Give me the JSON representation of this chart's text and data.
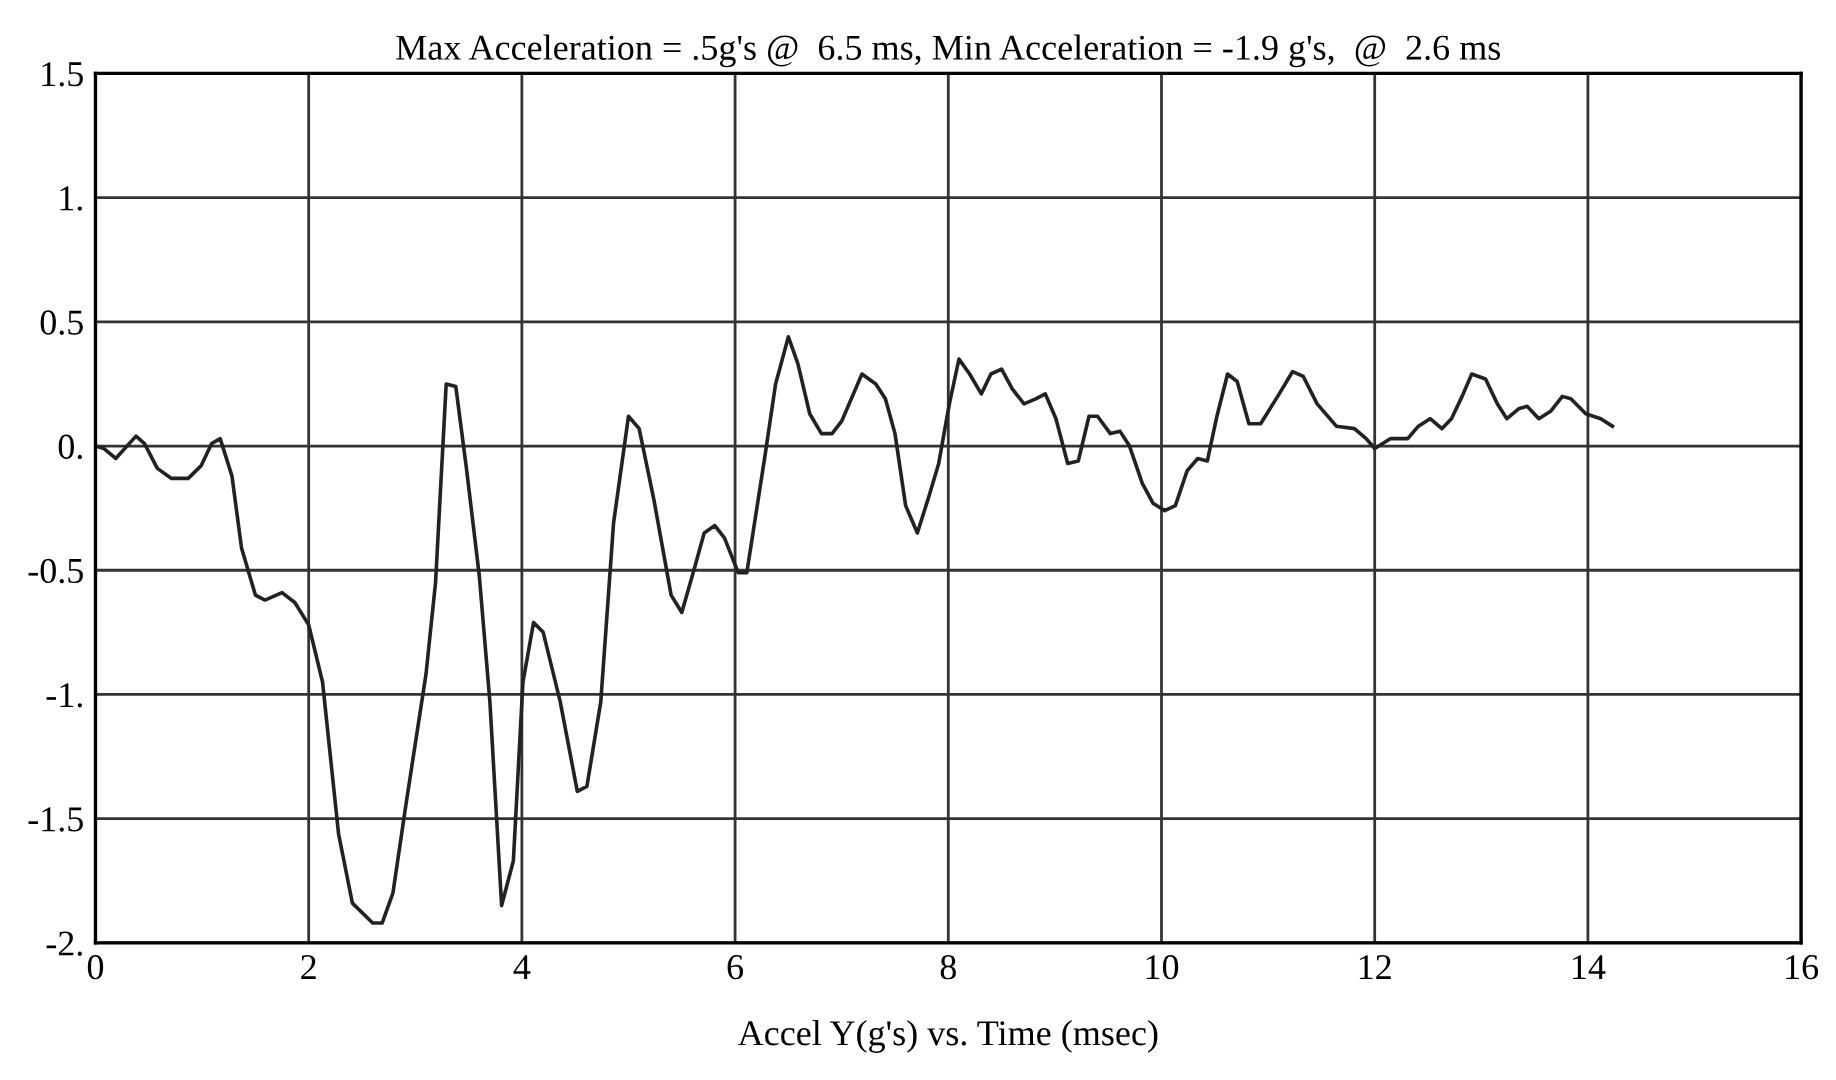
{
  "chart_data": {
    "type": "line",
    "title": "Max Acceleration = .5g's @  6.5 ms, Min Acceleration = -1.9 g's,  @  2.6 ms",
    "xlabel": "Accel Y(g's) vs. Time (msec)",
    "xlim": [
      0,
      16
    ],
    "xticks": [
      0,
      2,
      4,
      6,
      8,
      10,
      12,
      14,
      16
    ],
    "ylim": [
      -2,
      1.5
    ],
    "yticks": [
      {
        "value": -2,
        "label": "-2."
      },
      -1.5,
      {
        "value": -1,
        "label": "-1."
      },
      -0.5,
      {
        "value": 0,
        "label": "0."
      },
      0.5,
      {
        "value": 1,
        "label": "1."
      },
      1.5
    ],
    "grid": true,
    "marker": "none",
    "line_style": "solid",
    "series": [
      {
        "color": "#222222",
        "x": [
          0,
          0.08,
          0.19,
          0.38,
          0.46,
          0.58,
          0.71,
          0.87,
          0.99,
          1.09,
          1.17,
          1.28,
          1.37,
          1.5,
          1.59,
          1.75,
          1.87,
          2.0,
          2.13,
          2.28,
          2.41,
          2.6,
          2.69,
          2.79,
          2.91,
          3.1,
          3.19,
          3.29,
          3.38,
          3.48,
          3.6,
          3.7,
          3.81,
          3.92,
          4.01,
          4.11,
          4.2,
          4.36,
          4.52,
          4.61,
          4.74,
          4.86,
          5.0,
          5.1,
          5.24,
          5.4,
          5.5,
          5.62,
          5.71,
          5.81,
          5.9,
          6.03,
          6.11,
          6.28,
          6.38,
          6.5,
          6.59,
          6.7,
          6.81,
          6.91,
          7.0,
          7.1,
          7.19,
          7.32,
          7.41,
          7.5,
          7.6,
          7.71,
          7.82,
          7.91,
          8.01,
          8.1,
          8.2,
          8.31,
          8.4,
          8.5,
          8.6,
          8.71,
          8.82,
          8.91,
          9.01,
          9.12,
          9.22,
          9.32,
          9.4,
          9.52,
          9.61,
          9.7,
          9.82,
          9.92,
          10.03,
          10.13,
          10.24,
          10.34,
          10.43,
          10.52,
          10.62,
          10.71,
          10.82,
          10.93,
          11.09,
          11.23,
          11.33,
          11.46,
          11.64,
          11.81,
          11.92,
          12.0,
          12.15,
          12.31,
          12.41,
          12.52,
          12.63,
          12.72,
          12.82,
          12.91,
          13.04,
          13.15,
          13.24,
          13.35,
          13.43,
          13.54,
          13.65,
          13.76,
          13.84,
          13.98,
          14.12,
          14.23
        ],
        "values": [
          0.0,
          -0.01,
          -0.05,
          0.04,
          0.01,
          -0.09,
          -0.13,
          -0.13,
          -0.08,
          0.01,
          0.03,
          -0.12,
          -0.41,
          -0.6,
          -0.62,
          -0.59,
          -0.63,
          -0.72,
          -0.95,
          -1.56,
          -1.84,
          -1.92,
          -1.92,
          -1.8,
          -1.45,
          -0.92,
          -0.55,
          0.25,
          0.24,
          -0.09,
          -0.52,
          -1.03,
          -1.85,
          -1.67,
          -0.95,
          -0.71,
          -0.75,
          -1.03,
          -1.39,
          -1.37,
          -1.03,
          -0.31,
          0.12,
          0.07,
          -0.22,
          -0.6,
          -0.67,
          -0.49,
          -0.35,
          -0.32,
          -0.37,
          -0.51,
          -0.51,
          -0.04,
          0.25,
          0.44,
          0.33,
          0.13,
          0.05,
          0.05,
          0.1,
          0.2,
          0.29,
          0.25,
          0.19,
          0.05,
          -0.24,
          -0.35,
          -0.2,
          -0.07,
          0.17,
          0.35,
          0.29,
          0.21,
          0.29,
          0.31,
          0.23,
          0.17,
          0.19,
          0.21,
          0.11,
          -0.07,
          -0.06,
          0.12,
          0.12,
          0.05,
          0.06,
          0.0,
          -0.15,
          -0.23,
          -0.26,
          -0.24,
          -0.1,
          -0.05,
          -0.06,
          0.12,
          0.29,
          0.26,
          0.09,
          0.09,
          0.2,
          0.3,
          0.28,
          0.17,
          0.08,
          0.07,
          0.03,
          -0.01,
          0.03,
          0.03,
          0.08,
          0.11,
          0.07,
          0.11,
          0.2,
          0.29,
          0.27,
          0.17,
          0.11,
          0.15,
          0.16,
          0.11,
          0.14,
          0.2,
          0.19,
          0.13,
          0.11,
          0.08
        ]
      }
    ]
  }
}
